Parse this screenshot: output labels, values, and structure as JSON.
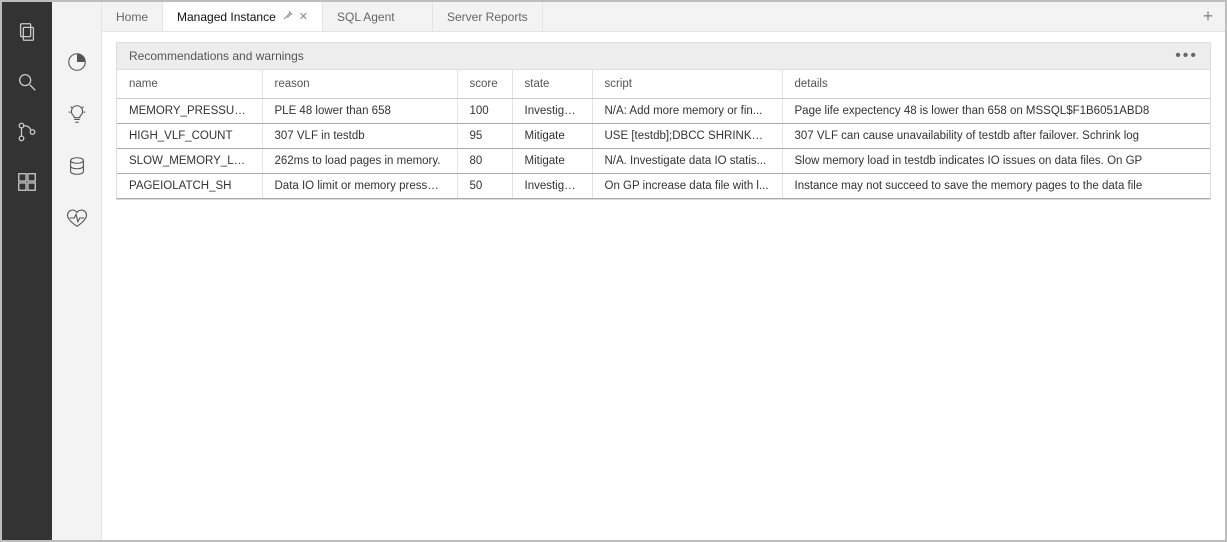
{
  "tabs": {
    "home": "Home",
    "managed_instance": "Managed Instance",
    "sql_agent": "SQL Agent",
    "server_reports": "Server Reports"
  },
  "panel": {
    "title": "Recommendations and warnings"
  },
  "table": {
    "columns": {
      "name": "name",
      "reason": "reason",
      "score": "score",
      "state": "state",
      "script": "script",
      "details": "details"
    },
    "rows": [
      {
        "name": "MEMORY_PRESSURE",
        "reason": "PLE 48 lower than 658",
        "score": "100",
        "state": "Investigate",
        "script": "N/A: Add more memory or fin...",
        "details": "Page life expectency 48 is lower than 658 on MSSQL$F1B6051ABD8"
      },
      {
        "name": "HIGH_VLF_COUNT",
        "reason": "307 VLF in testdb",
        "score": "95",
        "state": "Mitigate",
        "script": "USE [testdb];DBCC SHRINKFIL...",
        "details": "307 VLF can cause unavailability of testdb after failover. Schrink log"
      },
      {
        "name": "SLOW_MEMORY_LOAD",
        "reason": "262ms to load pages in memory.",
        "score": "80",
        "state": "Mitigate",
        "script": "N/A. Investigate data IO statis...",
        "details": "Slow memory load in testdb indicates IO issues on data files. On GP"
      },
      {
        "name": "PAGEIOLATCH_SH",
        "reason": "Data IO limit or memory pressure.",
        "score": "50",
        "state": "Investigate",
        "script": "On GP increase data file with l...",
        "details": "Instance may not succeed to save the memory pages to the data file"
      }
    ]
  },
  "styling": {
    "activity_bar_bg": "#333333",
    "activity_bar_icon": "#cccccc",
    "sidebar_bg": "#f3f3f3",
    "tabbar_bg": "#f3f3f3",
    "tab_active_bg": "#ffffff",
    "panel_header_bg": "#ededed",
    "border_color": "#dcdcdc",
    "row_border_color": "#aaaaaa",
    "text_color": "#333333",
    "muted_text": "#666666",
    "font_size_base": 12
  }
}
